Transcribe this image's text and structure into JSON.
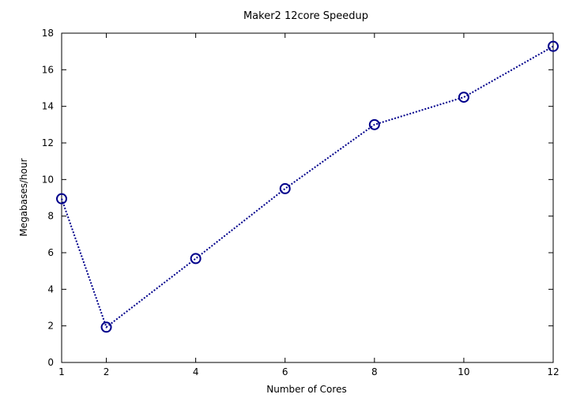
{
  "chart_data": {
    "type": "line",
    "title": "Maker2 12core Speedup",
    "xlabel": "Number of Cores",
    "ylabel": "Megabases/hour",
    "xlim": [
      1,
      12
    ],
    "ylim": [
      0,
      18
    ],
    "xticks": [
      1,
      2,
      4,
      6,
      8,
      10,
      12
    ],
    "yticks": [
      0,
      2,
      4,
      6,
      8,
      10,
      12,
      14,
      16,
      18
    ],
    "grid": false,
    "series": [
      {
        "x": [
          1,
          2,
          4,
          6,
          8,
          10,
          12
        ],
        "y": [
          8.95,
          1.93,
          5.68,
          9.5,
          13.0,
          14.5,
          17.28
        ],
        "line_style": "dotted",
        "marker": "open-circle",
        "color": "#00008b"
      }
    ]
  }
}
